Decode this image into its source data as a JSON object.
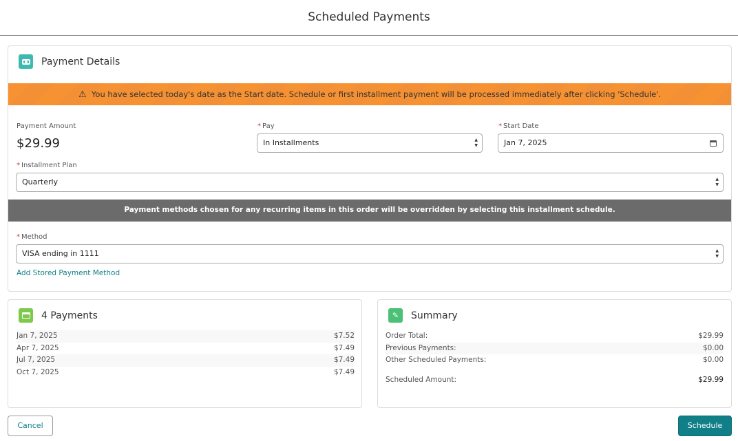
{
  "header": {
    "title": "Scheduled Payments"
  },
  "payment_details": {
    "title": "Payment Details",
    "warning": "You have selected today's date as the Start date. Schedule or first installment payment will be processed immediately after clicking 'Schedule'.",
    "payment_amount_label": "Payment Amount",
    "payment_amount": "$29.99",
    "pay_label": "Pay",
    "pay_value": "In Installments",
    "start_date_label": "Start Date",
    "start_date_value": "Jan 7, 2025",
    "installment_plan_label": "Installment Plan",
    "installment_plan_value": "Quarterly",
    "info": "Payment methods chosen for any recurring items in this order will be overridden by selecting this installment schedule.",
    "method_label": "Method",
    "method_value": "VISA ending in 1111",
    "add_method_link": "Add Stored Payment Method",
    "required_mark": "*"
  },
  "payments": {
    "title": "4 Payments",
    "rows": [
      {
        "date": "Jan 7, 2025",
        "amount": "$7.52"
      },
      {
        "date": "Apr 7, 2025",
        "amount": "$7.49"
      },
      {
        "date": "Jul 7, 2025",
        "amount": "$7.49"
      },
      {
        "date": "Oct 7, 2025",
        "amount": "$7.49"
      }
    ]
  },
  "summary": {
    "title": "Summary",
    "rows": [
      {
        "label": "Order Total:",
        "value": "$29.99"
      },
      {
        "label": "Previous Payments:",
        "value": "$0.00"
      },
      {
        "label": "Other Scheduled Payments:",
        "value": "$0.00"
      }
    ],
    "scheduled_label": "Scheduled Amount:",
    "scheduled_value": "$29.99"
  },
  "footer": {
    "cancel": "Cancel",
    "schedule": "Schedule"
  },
  "colors": {
    "accent": "#107f87",
    "warning": "#f79232",
    "info_bar": "#6b6b6b"
  }
}
